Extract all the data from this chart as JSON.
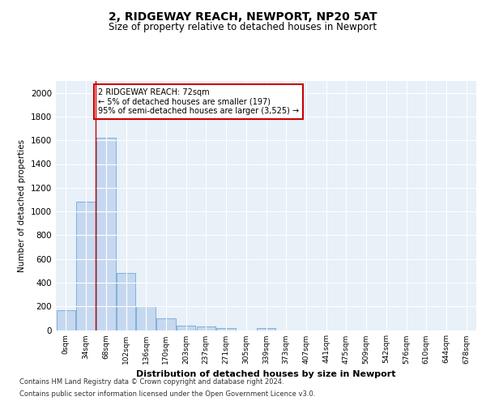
{
  "title": "2, RIDGEWAY REACH, NEWPORT, NP20 5AT",
  "subtitle": "Size of property relative to detached houses in Newport",
  "xlabel": "Distribution of detached houses by size in Newport",
  "ylabel": "Number of detached properties",
  "bar_color": "#c5d8f0",
  "bar_edge_color": "#6fa8d4",
  "background_color": "#ffffff",
  "plot_bg_color": "#e8f0f8",
  "grid_color": "#ffffff",
  "categories": [
    "0sqm",
    "34sqm",
    "68sqm",
    "102sqm",
    "136sqm",
    "170sqm",
    "203sqm",
    "237sqm",
    "271sqm",
    "305sqm",
    "339sqm",
    "373sqm",
    "407sqm",
    "441sqm",
    "475sqm",
    "509sqm",
    "542sqm",
    "576sqm",
    "610sqm",
    "644sqm",
    "678sqm"
  ],
  "values": [
    165,
    1085,
    1625,
    480,
    200,
    100,
    40,
    30,
    20,
    0,
    20,
    0,
    0,
    0,
    0,
    0,
    0,
    0,
    0,
    0,
    0
  ],
  "ylim": [
    0,
    2100
  ],
  "yticks": [
    0,
    200,
    400,
    600,
    800,
    1000,
    1200,
    1400,
    1600,
    1800,
    2000
  ],
  "vline_x": 1.5,
  "annotation_text": "2 RIDGEWAY REACH: 72sqm\n← 5% of detached houses are smaller (197)\n95% of semi-detached houses are larger (3,525) →",
  "annotation_box_color": "#ffffff",
  "annotation_box_edge": "#cc0000",
  "vline_color": "#cc0000",
  "footer_line1": "Contains HM Land Registry data © Crown copyright and database right 2024.",
  "footer_line2": "Contains public sector information licensed under the Open Government Licence v3.0."
}
